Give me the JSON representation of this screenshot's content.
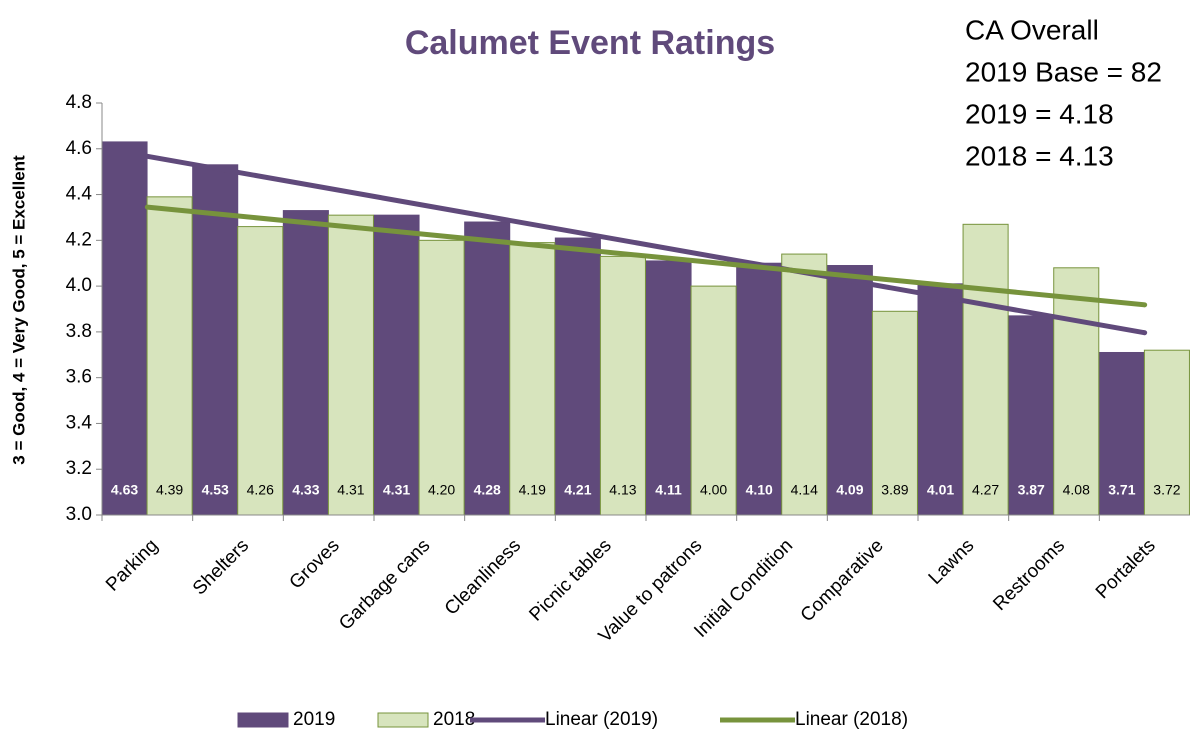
{
  "chart_data": {
    "type": "bar",
    "title": "Calumet Event Ratings",
    "y_label": "3 = Good, 4 = Very Good, 5 = Excellent",
    "annotations": [
      "CA Overall",
      "2019 Base = 82",
      "2019 = 4.18",
      "2018 = 4.13"
    ],
    "categories": [
      "Parking",
      "Shelters",
      "Groves",
      "Garbage cans",
      "Cleanliness",
      "Picnic tables",
      "Value to patrons",
      "Initial Condition",
      "Comparative",
      "Lawns",
      "Restrooms",
      "Portalets"
    ],
    "series": [
      {
        "name": "2019",
        "color": "#604a7b",
        "values": [
          4.63,
          4.53,
          4.33,
          4.31,
          4.28,
          4.21,
          4.11,
          4.1,
          4.09,
          4.01,
          3.87,
          3.71
        ],
        "value_labels": [
          "4.63",
          "4.53",
          "4.33",
          "4.31",
          "4.28",
          "4.21",
          "4.11",
          "4.10",
          "4.09",
          "4.01",
          "3.87",
          "3.71"
        ]
      },
      {
        "name": "2018",
        "color": "#d7e4bd",
        "values": [
          4.39,
          4.26,
          4.31,
          4.2,
          4.19,
          4.13,
          4.0,
          4.14,
          3.89,
          4.27,
          4.08,
          3.72
        ],
        "value_labels": [
          "4.39",
          "4.26",
          "4.31",
          "4.20",
          "4.19",
          "4.13",
          "4.00",
          "4.14",
          "3.89",
          "4.27",
          "4.08",
          "3.72"
        ]
      }
    ],
    "trendlines": [
      {
        "name": "Linear (2019)",
        "color": "#604a7b"
      },
      {
        "name": "Linear (2018)",
        "color": "#77933c"
      }
    ],
    "ylim": [
      3.0,
      4.8
    ],
    "yticks": [
      {
        "value": 3.0,
        "label": "3.0"
      },
      {
        "value": 3.2,
        "label": "3.2"
      },
      {
        "value": 3.4,
        "label": "3.4"
      },
      {
        "value": 3.6,
        "label": "3.6"
      },
      {
        "value": 3.8,
        "label": "3.8"
      },
      {
        "value": 4.0,
        "label": "4.0"
      },
      {
        "value": 4.2,
        "label": "4.2"
      },
      {
        "value": 4.4,
        "label": "4.4"
      },
      {
        "value": 4.6,
        "label": "4.6"
      },
      {
        "value": 4.8,
        "label": "4.8"
      }
    ],
    "legend": "bottom"
  }
}
